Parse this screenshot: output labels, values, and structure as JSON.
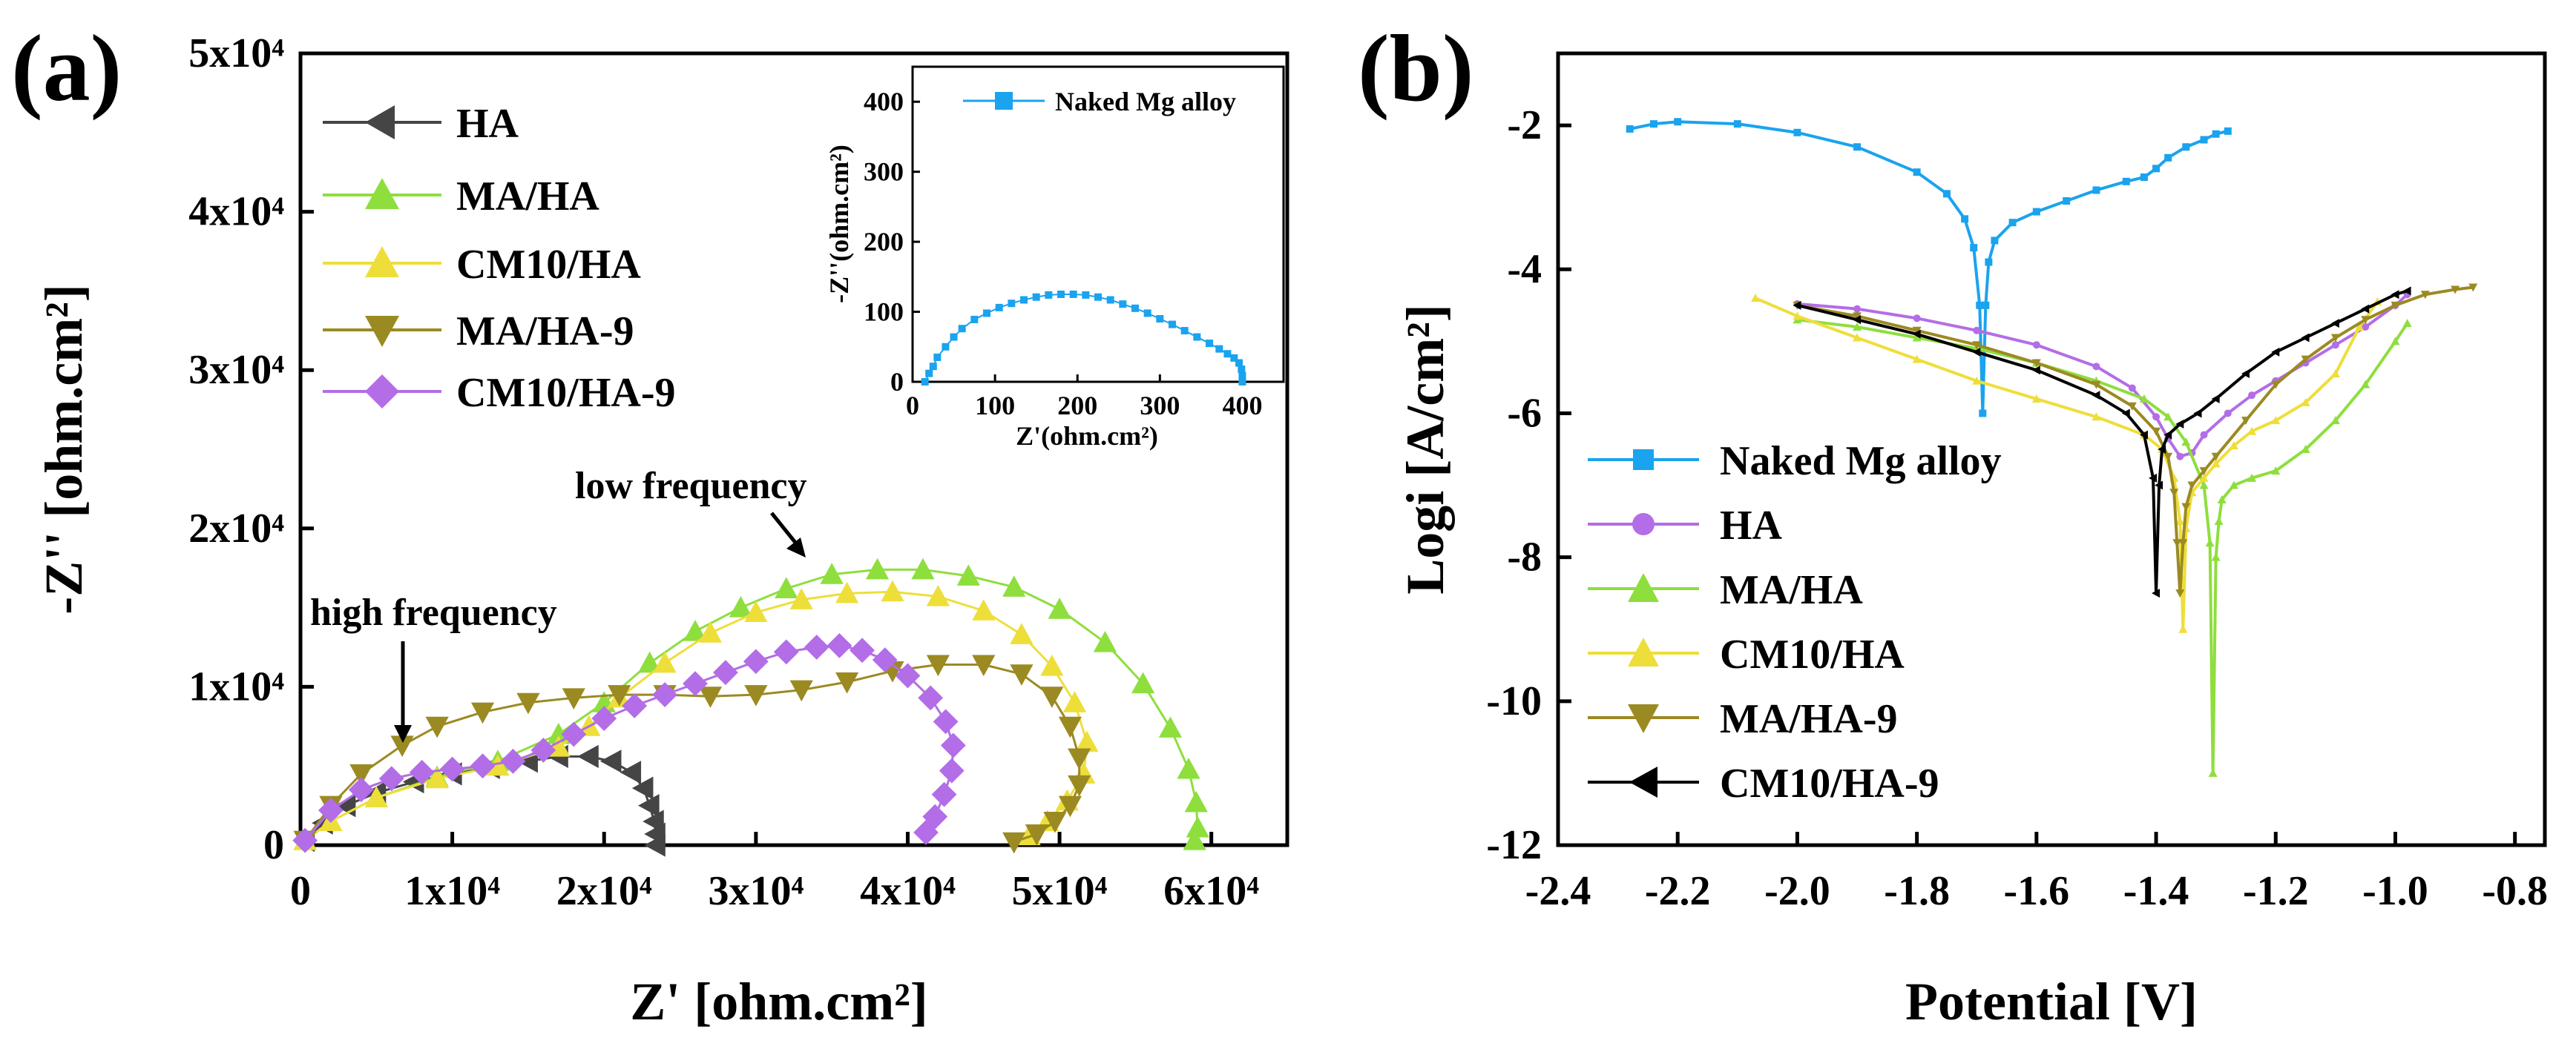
{
  "chart_data": [
    {
      "panel": "(a)",
      "type": "scatter",
      "title": "",
      "xlabel": "Z' [ohm.cm²]",
      "ylabel": "-Z'' [ohm.cm²]",
      "xlim": [
        0,
        65000
      ],
      "ylim": [
        0,
        50000
      ],
      "xtick_labels": [
        "0",
        "1x10⁴",
        "2x10⁴",
        "3x10⁴",
        "4x10⁴",
        "5x10⁴",
        "6x10⁴"
      ],
      "xtick_values": [
        0,
        10000,
        20000,
        30000,
        40000,
        50000,
        60000
      ],
      "ytick_labels": [
        "0",
        "1x10⁴",
        "2x10⁴",
        "3x10⁴",
        "4x10⁴",
        "5x10⁴"
      ],
      "ytick_values": [
        0,
        10000,
        20000,
        30000,
        40000,
        50000
      ],
      "legend_position": "top-left",
      "annotations": [
        {
          "text": "low frequency",
          "arrow_to": [
            34500,
            17400
          ]
        },
        {
          "text": "high frequency",
          "arrow_to": [
            6700,
            6300
          ]
        }
      ],
      "series": [
        {
          "name": "HA",
          "color": "#454545",
          "marker": "triangle-left",
          "x": [
            300,
            1500,
            3000,
            5000,
            7500,
            10000,
            12500,
            15000,
            17000,
            19000,
            20500,
            21800,
            22600,
            23000,
            23300,
            23400,
            23400
          ],
          "y": [
            300,
            1400,
            2500,
            3300,
            4000,
            4500,
            4900,
            5300,
            5600,
            5600,
            5300,
            4600,
            3600,
            2500,
            1500,
            700,
            0
          ]
        },
        {
          "name": "MA/HA",
          "color": "#8ede3d",
          "marker": "triangle-up",
          "x": [
            300,
            2000,
            5000,
            9000,
            13000,
            17000,
            20000,
            23000,
            26000,
            29000,
            32000,
            35000,
            38000,
            41000,
            44000,
            47000,
            50000,
            53000,
            55500,
            57300,
            58500,
            59000,
            59100,
            58900
          ],
          "y": [
            300,
            1500,
            3000,
            4300,
            5300,
            7000,
            9000,
            11500,
            13500,
            15000,
            16200,
            17100,
            17400,
            17400,
            17000,
            16300,
            14900,
            12800,
            10200,
            7400,
            4800,
            2700,
            1100,
            300
          ]
        },
        {
          "name": "CM10/HA",
          "color": "#eede3a",
          "marker": "triangle-up",
          "x": [
            300,
            2000,
            5000,
            9000,
            13000,
            17000,
            19000,
            21000,
            24000,
            27000,
            30000,
            33000,
            36000,
            39000,
            42000,
            45000,
            47500,
            49500,
            51000,
            51800,
            51600,
            50500,
            49200,
            48000
          ],
          "y": [
            300,
            1500,
            3000,
            4200,
            5000,
            6200,
            7500,
            9300,
            11500,
            13400,
            14700,
            15500,
            15900,
            16000,
            15700,
            14800,
            13300,
            11300,
            9000,
            6500,
            4500,
            2800,
            1500,
            600
          ]
        },
        {
          "name": "MA/HA-9",
          "color": "#9b8a22",
          "marker": "triangle-down",
          "x": [
            300,
            2000,
            4000,
            6700,
            9000,
            12000,
            15000,
            18000,
            21000,
            24000,
            27000,
            30000,
            33000,
            36000,
            39000,
            42000,
            45000,
            47500,
            49500,
            50700,
            51300,
            51300,
            50700,
            49700,
            48500,
            47000
          ],
          "y": [
            300,
            2500,
            4500,
            6300,
            7500,
            8400,
            9000,
            9300,
            9500,
            9500,
            9400,
            9500,
            9800,
            10300,
            11000,
            11400,
            11400,
            10800,
            9400,
            7500,
            5500,
            3800,
            2500,
            1500,
            700,
            200
          ]
        },
        {
          "name": "CM10/HA-9",
          "color": "#b36de6",
          "marker": "diamond",
          "x": [
            300,
            2000,
            4000,
            6000,
            8000,
            10000,
            12000,
            14000,
            16000,
            18000,
            20000,
            22000,
            24000,
            26000,
            28000,
            30000,
            32000,
            34000,
            35500,
            37000,
            38500,
            40000,
            41500,
            42500,
            43000,
            42900,
            42400,
            41800,
            41200
          ],
          "y": [
            300,
            2200,
            3500,
            4200,
            4600,
            4800,
            5000,
            5300,
            6000,
            7000,
            8000,
            8800,
            9500,
            10200,
            10900,
            11600,
            12200,
            12500,
            12600,
            12300,
            11700,
            10700,
            9300,
            7800,
            6300,
            4700,
            3200,
            1800,
            800
          ]
        }
      ],
      "inset": {
        "xlabel": "Z'(ohm.cm²)",
        "ylabel": "-Z''(ohm.cm²)",
        "xlim": [
          0,
          450
        ],
        "ylim": [
          0,
          450
        ],
        "xtick_labels": [
          "0",
          "100",
          "200",
          "300",
          "400"
        ],
        "xtick_values": [
          0,
          100,
          200,
          300,
          400
        ],
        "ytick_labels": [
          "0",
          "100",
          "200",
          "300",
          "400"
        ],
        "ytick_values": [
          0,
          100,
          200,
          300,
          400
        ],
        "series": [
          {
            "name": "Naked Mg alloy",
            "color": "#1aa3ee",
            "marker": "square",
            "x": [
              15,
              20,
              25,
              30,
              40,
              50,
              60,
              75,
              90,
              105,
              120,
              135,
              150,
              165,
              180,
              195,
              210,
              225,
              240,
              255,
              270,
              285,
              300,
              315,
              330,
              345,
              360,
              372,
              382,
              390,
              396,
              399,
              400,
              400
            ],
            "y": [
              0,
              12,
              22,
              35,
              50,
              64,
              76,
              89,
              98,
              106,
              112,
              117,
              121,
              124,
              125,
              125,
              124,
              121,
              117,
              111,
              105,
              98,
              90,
              82,
              73,
              64,
              55,
              47,
              40,
              34,
              27,
              18,
              9,
              0
            ]
          }
        ]
      }
    },
    {
      "panel": "(b)",
      "type": "line",
      "title": "",
      "xlabel": "Potential [V]",
      "ylabel": "Logi [A/cm²]",
      "xlim": [
        -2.4,
        -0.75
      ],
      "ylim": [
        -12,
        -1
      ],
      "xtick_labels": [
        "-2.4",
        "-2.2",
        "-2.0",
        "-1.8",
        "-1.6",
        "-1.4",
        "-1.2",
        "-1.0",
        "-0.8"
      ],
      "xtick_values": [
        -2.4,
        -2.2,
        -2.0,
        -1.8,
        -1.6,
        -1.4,
        -1.2,
        -1.0,
        -0.8
      ],
      "ytick_labels": [
        "-12",
        "-10",
        "-8",
        "-6",
        "-4",
        "-2"
      ],
      "ytick_values": [
        -12,
        -10,
        -8,
        -6,
        -4,
        -2
      ],
      "legend_position": "bottom-left",
      "series": [
        {
          "name": "Naked Mg alloy",
          "color": "#1aa3ee",
          "marker": "square",
          "x": [
            -2.28,
            -2.24,
            -2.2,
            -2.1,
            -2.0,
            -1.9,
            -1.8,
            -1.75,
            -1.72,
            -1.705,
            -1.695,
            -1.69,
            -1.685,
            -1.68,
            -1.67,
            -1.64,
            -1.6,
            -1.55,
            -1.5,
            -1.45,
            -1.42,
            -1.4,
            -1.38,
            -1.35,
            -1.32,
            -1.3,
            -1.28
          ],
          "y": [
            -2.05,
            -1.98,
            -1.95,
            -1.98,
            -2.1,
            -2.3,
            -2.65,
            -2.95,
            -3.3,
            -3.7,
            -4.5,
            -6.0,
            -4.5,
            -3.9,
            -3.6,
            -3.35,
            -3.2,
            -3.05,
            -2.9,
            -2.78,
            -2.72,
            -2.6,
            -2.45,
            -2.3,
            -2.2,
            -2.12,
            -2.08
          ]
        },
        {
          "name": "HA",
          "color": "#b36de6",
          "marker": "circle",
          "x": [
            -2.0,
            -1.9,
            -1.8,
            -1.7,
            -1.6,
            -1.5,
            -1.44,
            -1.4,
            -1.38,
            -1.36,
            -1.34,
            -1.32,
            -1.28,
            -1.24,
            -1.2,
            -1.15,
            -1.1,
            -1.05,
            -1.0,
            -0.98
          ],
          "y": [
            -4.48,
            -4.55,
            -4.68,
            -4.85,
            -5.05,
            -5.35,
            -5.65,
            -6.05,
            -6.35,
            -6.6,
            -6.55,
            -6.3,
            -6.0,
            -5.75,
            -5.55,
            -5.3,
            -5.05,
            -4.8,
            -4.5,
            -4.35
          ]
        },
        {
          "name": "MA/HA",
          "color": "#8ede3d",
          "marker": "triangle-up",
          "x": [
            -2.0,
            -1.9,
            -1.8,
            -1.7,
            -1.6,
            -1.5,
            -1.42,
            -1.38,
            -1.35,
            -1.32,
            -1.31,
            -1.305,
            -1.3,
            -1.295,
            -1.29,
            -1.27,
            -1.24,
            -1.2,
            -1.15,
            -1.1,
            -1.05,
            -1.0,
            -0.98
          ],
          "y": [
            -4.7,
            -4.8,
            -4.95,
            -5.1,
            -5.3,
            -5.55,
            -5.8,
            -6.05,
            -6.4,
            -7.0,
            -7.8,
            -11.0,
            -8.0,
            -7.5,
            -7.2,
            -7.0,
            -6.9,
            -6.8,
            -6.5,
            -6.1,
            -5.6,
            -5.0,
            -4.75
          ]
        },
        {
          "name": "CM10/HA",
          "color": "#eede3a",
          "marker": "triangle-up",
          "x": [
            -2.07,
            -2.0,
            -1.9,
            -1.8,
            -1.7,
            -1.6,
            -1.5,
            -1.42,
            -1.39,
            -1.37,
            -1.36,
            -1.355,
            -1.35,
            -1.34,
            -1.32,
            -1.3,
            -1.27,
            -1.24,
            -1.2,
            -1.15,
            -1.1,
            -1.06,
            -1.03
          ],
          "y": [
            -4.4,
            -4.65,
            -4.95,
            -5.25,
            -5.55,
            -5.8,
            -6.05,
            -6.3,
            -6.5,
            -6.9,
            -7.5,
            -9.0,
            -7.6,
            -7.1,
            -6.9,
            -6.7,
            -6.45,
            -6.25,
            -6.1,
            -5.85,
            -5.45,
            -4.8,
            -4.45
          ]
        },
        {
          "name": "MA/HA-9",
          "color": "#9b8a22",
          "marker": "triangle-down",
          "x": [
            -2.0,
            -1.9,
            -1.8,
            -1.7,
            -1.6,
            -1.5,
            -1.44,
            -1.4,
            -1.38,
            -1.37,
            -1.365,
            -1.36,
            -1.355,
            -1.35,
            -1.34,
            -1.32,
            -1.3,
            -1.25,
            -1.2,
            -1.15,
            -1.1,
            -1.05,
            -1.0,
            -0.95,
            -0.9,
            -0.87
          ],
          "y": [
            -4.5,
            -4.65,
            -4.85,
            -5.05,
            -5.3,
            -5.6,
            -5.9,
            -6.25,
            -6.6,
            -7.1,
            -7.8,
            -8.5,
            -7.8,
            -7.3,
            -7.0,
            -6.8,
            -6.6,
            -6.1,
            -5.6,
            -5.25,
            -4.95,
            -4.7,
            -4.5,
            -4.35,
            -4.28,
            -4.25
          ]
        },
        {
          "name": "CM10/HA-9",
          "color": "#000000",
          "marker": "triangle-left",
          "x": [
            -2.0,
            -1.9,
            -1.8,
            -1.7,
            -1.6,
            -1.5,
            -1.45,
            -1.42,
            -1.405,
            -1.4,
            -1.395,
            -1.39,
            -1.38,
            -1.36,
            -1.33,
            -1.3,
            -1.25,
            -1.2,
            -1.15,
            -1.1,
            -1.05,
            -1.0,
            -0.98
          ],
          "y": [
            -4.5,
            -4.7,
            -4.9,
            -5.15,
            -5.4,
            -5.75,
            -6.0,
            -6.3,
            -6.9,
            -8.5,
            -7.0,
            -6.5,
            -6.3,
            -6.15,
            -6.0,
            -5.8,
            -5.45,
            -5.15,
            -4.95,
            -4.75,
            -4.55,
            -4.35,
            -4.3
          ]
        }
      ]
    }
  ]
}
